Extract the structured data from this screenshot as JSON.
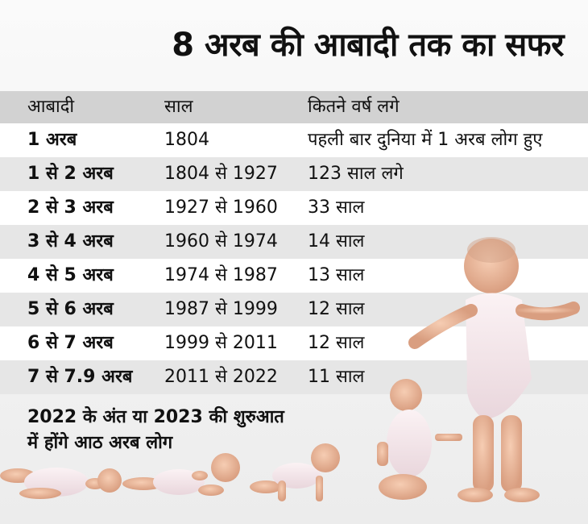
{
  "title": "8 अरब की आबादी तक का सफर",
  "table": {
    "headers": [
      "आबादी",
      "साल",
      "कितने वर्ष लगे"
    ],
    "rows": [
      [
        "1 अरब",
        "1804",
        "पहली बार दुनिया में 1 अरब लोग हुए"
      ],
      [
        "1 से 2 अरब",
        "1804 से 1927",
        "123 साल लगे"
      ],
      [
        "2 से 3 अरब",
        "1927 से 1960",
        "33 साल"
      ],
      [
        "3 से 4 अरब",
        "1960 से 1974",
        "14 साल"
      ],
      [
        "4 से 5 अरब",
        "1974 से 1987",
        "13 साल"
      ],
      [
        "5 से 6 अरब",
        "1987 से 1999",
        "12 साल"
      ],
      [
        "6 से 7 अरब",
        "1999 से 2011",
        "12 साल"
      ],
      [
        "7 से 7.9 अरब",
        "2011 से 2022",
        "11 साल"
      ]
    ]
  },
  "footnote": {
    "line1": "2022 के अंत या 2023 की शुरुआत",
    "line2": "में होंगे आठ अरब लोग"
  },
  "colors": {
    "header_bg": "#d2d2d2",
    "shade_bg": "#e6e6e6",
    "skin": "#e9b79a",
    "onesie": "#f4e6ea"
  }
}
